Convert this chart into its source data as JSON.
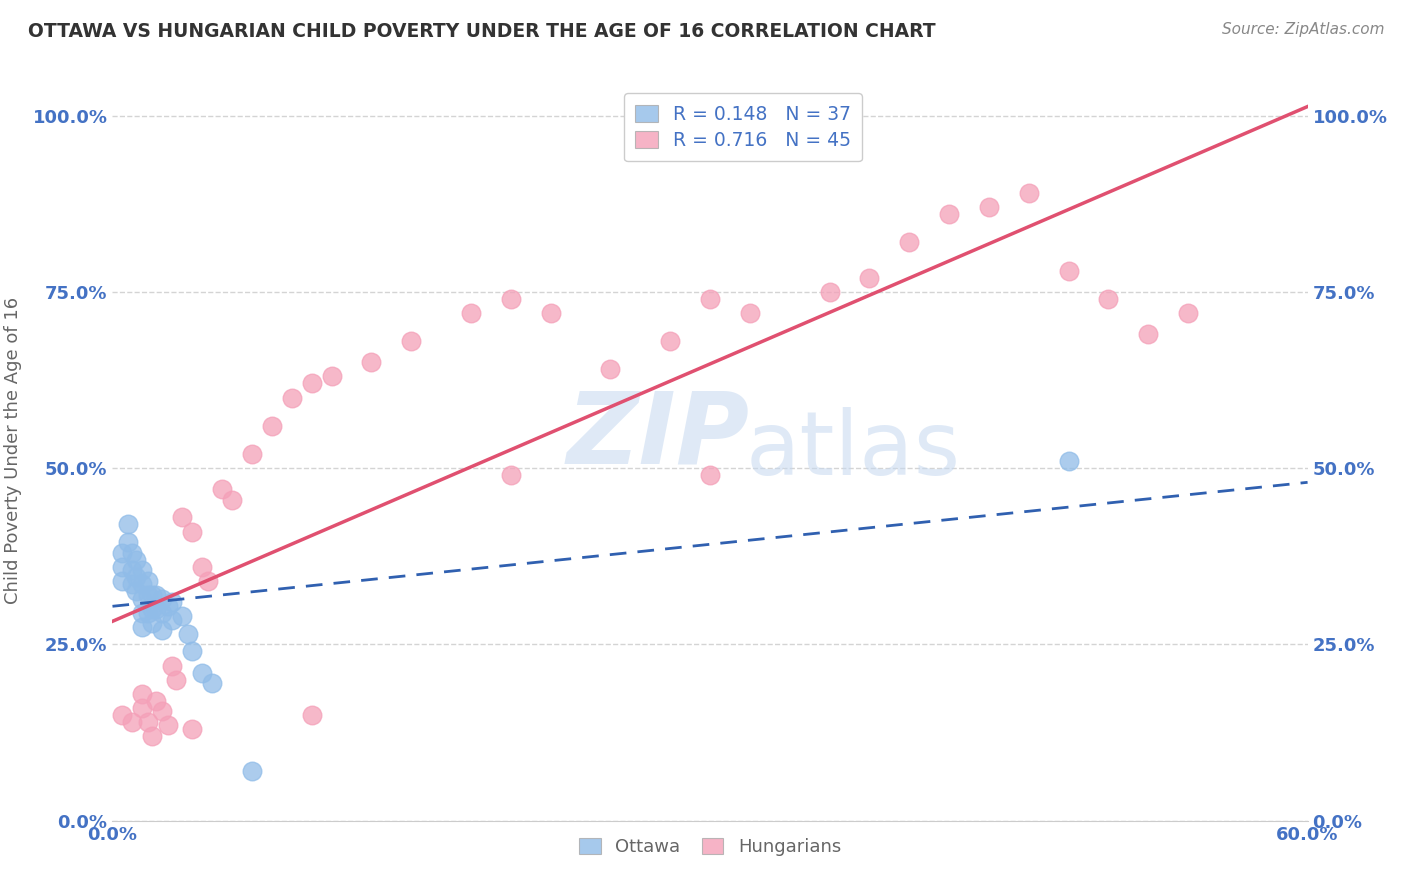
{
  "title": "OTTAWA VS HUNGARIAN CHILD POVERTY UNDER THE AGE OF 16 CORRELATION CHART",
  "source": "Source: ZipAtlas.com",
  "ylabel": "Child Poverty Under the Age of 16",
  "ylim": [
    0.0,
    1.05
  ],
  "xlim": [
    0.0,
    0.6
  ],
  "watermark_line1": "ZIP",
  "watermark_line2": "atlas",
  "legend_ottawa": "R = 0.148   N = 37",
  "legend_hungarian": "R = 0.716   N = 45",
  "ottawa_color": "#90bce8",
  "hungarian_color": "#f4a0b8",
  "ottawa_line_color": "#3060b0",
  "hungarian_line_color": "#e05070",
  "ottawa_R": 0.148,
  "hungarian_R": 0.716,
  "ottawa_scatter_x": [
    0.005,
    0.005,
    0.005,
    0.008,
    0.008,
    0.01,
    0.01,
    0.01,
    0.012,
    0.012,
    0.012,
    0.015,
    0.015,
    0.015,
    0.015,
    0.015,
    0.018,
    0.018,
    0.018,
    0.02,
    0.02,
    0.02,
    0.022,
    0.022,
    0.025,
    0.025,
    0.025,
    0.028,
    0.03,
    0.03,
    0.035,
    0.038,
    0.04,
    0.045,
    0.05,
    0.07,
    0.48
  ],
  "ottawa_scatter_y": [
    0.38,
    0.36,
    0.34,
    0.42,
    0.395,
    0.38,
    0.355,
    0.335,
    0.37,
    0.345,
    0.325,
    0.355,
    0.335,
    0.315,
    0.295,
    0.275,
    0.34,
    0.32,
    0.295,
    0.32,
    0.3,
    0.28,
    0.32,
    0.3,
    0.315,
    0.295,
    0.27,
    0.305,
    0.31,
    0.285,
    0.29,
    0.265,
    0.24,
    0.21,
    0.195,
    0.07,
    0.51
  ],
  "hungarian_scatter_x": [
    0.005,
    0.01,
    0.015,
    0.015,
    0.018,
    0.02,
    0.022,
    0.025,
    0.028,
    0.03,
    0.032,
    0.035,
    0.04,
    0.045,
    0.048,
    0.055,
    0.06,
    0.07,
    0.08,
    0.09,
    0.1,
    0.11,
    0.13,
    0.15,
    0.18,
    0.2,
    0.22,
    0.25,
    0.28,
    0.3,
    0.32,
    0.36,
    0.38,
    0.4,
    0.42,
    0.44,
    0.46,
    0.48,
    0.5,
    0.52,
    0.54,
    0.2,
    0.3,
    0.04,
    0.1
  ],
  "hungarian_scatter_y": [
    0.15,
    0.14,
    0.18,
    0.16,
    0.14,
    0.12,
    0.17,
    0.155,
    0.135,
    0.22,
    0.2,
    0.43,
    0.41,
    0.36,
    0.34,
    0.47,
    0.455,
    0.52,
    0.56,
    0.6,
    0.62,
    0.63,
    0.65,
    0.68,
    0.72,
    0.74,
    0.72,
    0.64,
    0.68,
    0.74,
    0.72,
    0.75,
    0.77,
    0.82,
    0.86,
    0.87,
    0.89,
    0.78,
    0.74,
    0.69,
    0.72,
    0.49,
    0.49,
    0.13,
    0.15
  ],
  "background_color": "#ffffff",
  "grid_color": "#d0d0d0"
}
